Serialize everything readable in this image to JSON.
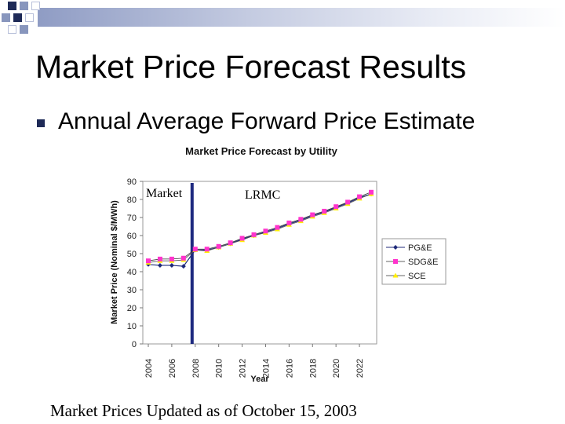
{
  "slide": {
    "title": "Market Price Forecast Results",
    "bullet": "Annual Average Forward Price Estimate",
    "footnote": "Market Prices Updated as of October 15, 2003"
  },
  "colors": {
    "theme_dark": "#1e2a57",
    "pge": "#1f2a7a",
    "sdge": "#ff33cc",
    "sce": "#ffee00",
    "divider": "#1e2a80",
    "plot_bg": "#ffffff"
  },
  "chart_data": {
    "type": "line",
    "title": "Market Price Forecast by Utility",
    "xlabel": "Year",
    "ylabel": "Market Price (Nominal $/MWh)",
    "ylim": [
      0,
      90
    ],
    "yticks": [
      0,
      10,
      20,
      30,
      40,
      50,
      60,
      70,
      80,
      90
    ],
    "x": [
      2004,
      2005,
      2006,
      2007,
      2008,
      2009,
      2010,
      2011,
      2012,
      2013,
      2014,
      2015,
      2016,
      2017,
      2018,
      2019,
      2020,
      2021,
      2022,
      2023
    ],
    "xticks": [
      "2004",
      "2006",
      "2008",
      "2010",
      "2012",
      "2014",
      "2016",
      "2018",
      "2020",
      "2022"
    ],
    "series": [
      {
        "name": "PG&E",
        "values": [
          44,
          43.5,
          43.5,
          43,
          52,
          52,
          53.5,
          55.5,
          58,
          60,
          62,
          64,
          66.5,
          68.5,
          71,
          73,
          75.5,
          78,
          81,
          83
        ]
      },
      {
        "name": "SDG&E",
        "values": [
          46,
          47,
          47,
          47.5,
          52.5,
          52.5,
          54,
          56,
          58.5,
          60.5,
          62.5,
          64.5,
          67,
          69,
          71.5,
          73.5,
          76,
          78.5,
          81.5,
          84
        ]
      },
      {
        "name": "SCE",
        "values": [
          45,
          46,
          46,
          46.5,
          52,
          51.5,
          53.5,
          55.5,
          57.5,
          60,
          61.5,
          63.5,
          66,
          68,
          70.5,
          72.5,
          75,
          77.5,
          80.5,
          83
        ]
      }
    ],
    "annotations": [
      {
        "text": "Market",
        "region": "2004-2007"
      },
      {
        "text": "LRMC",
        "region": "2008-2023"
      }
    ],
    "divider_x": 2008,
    "legend": "right"
  }
}
